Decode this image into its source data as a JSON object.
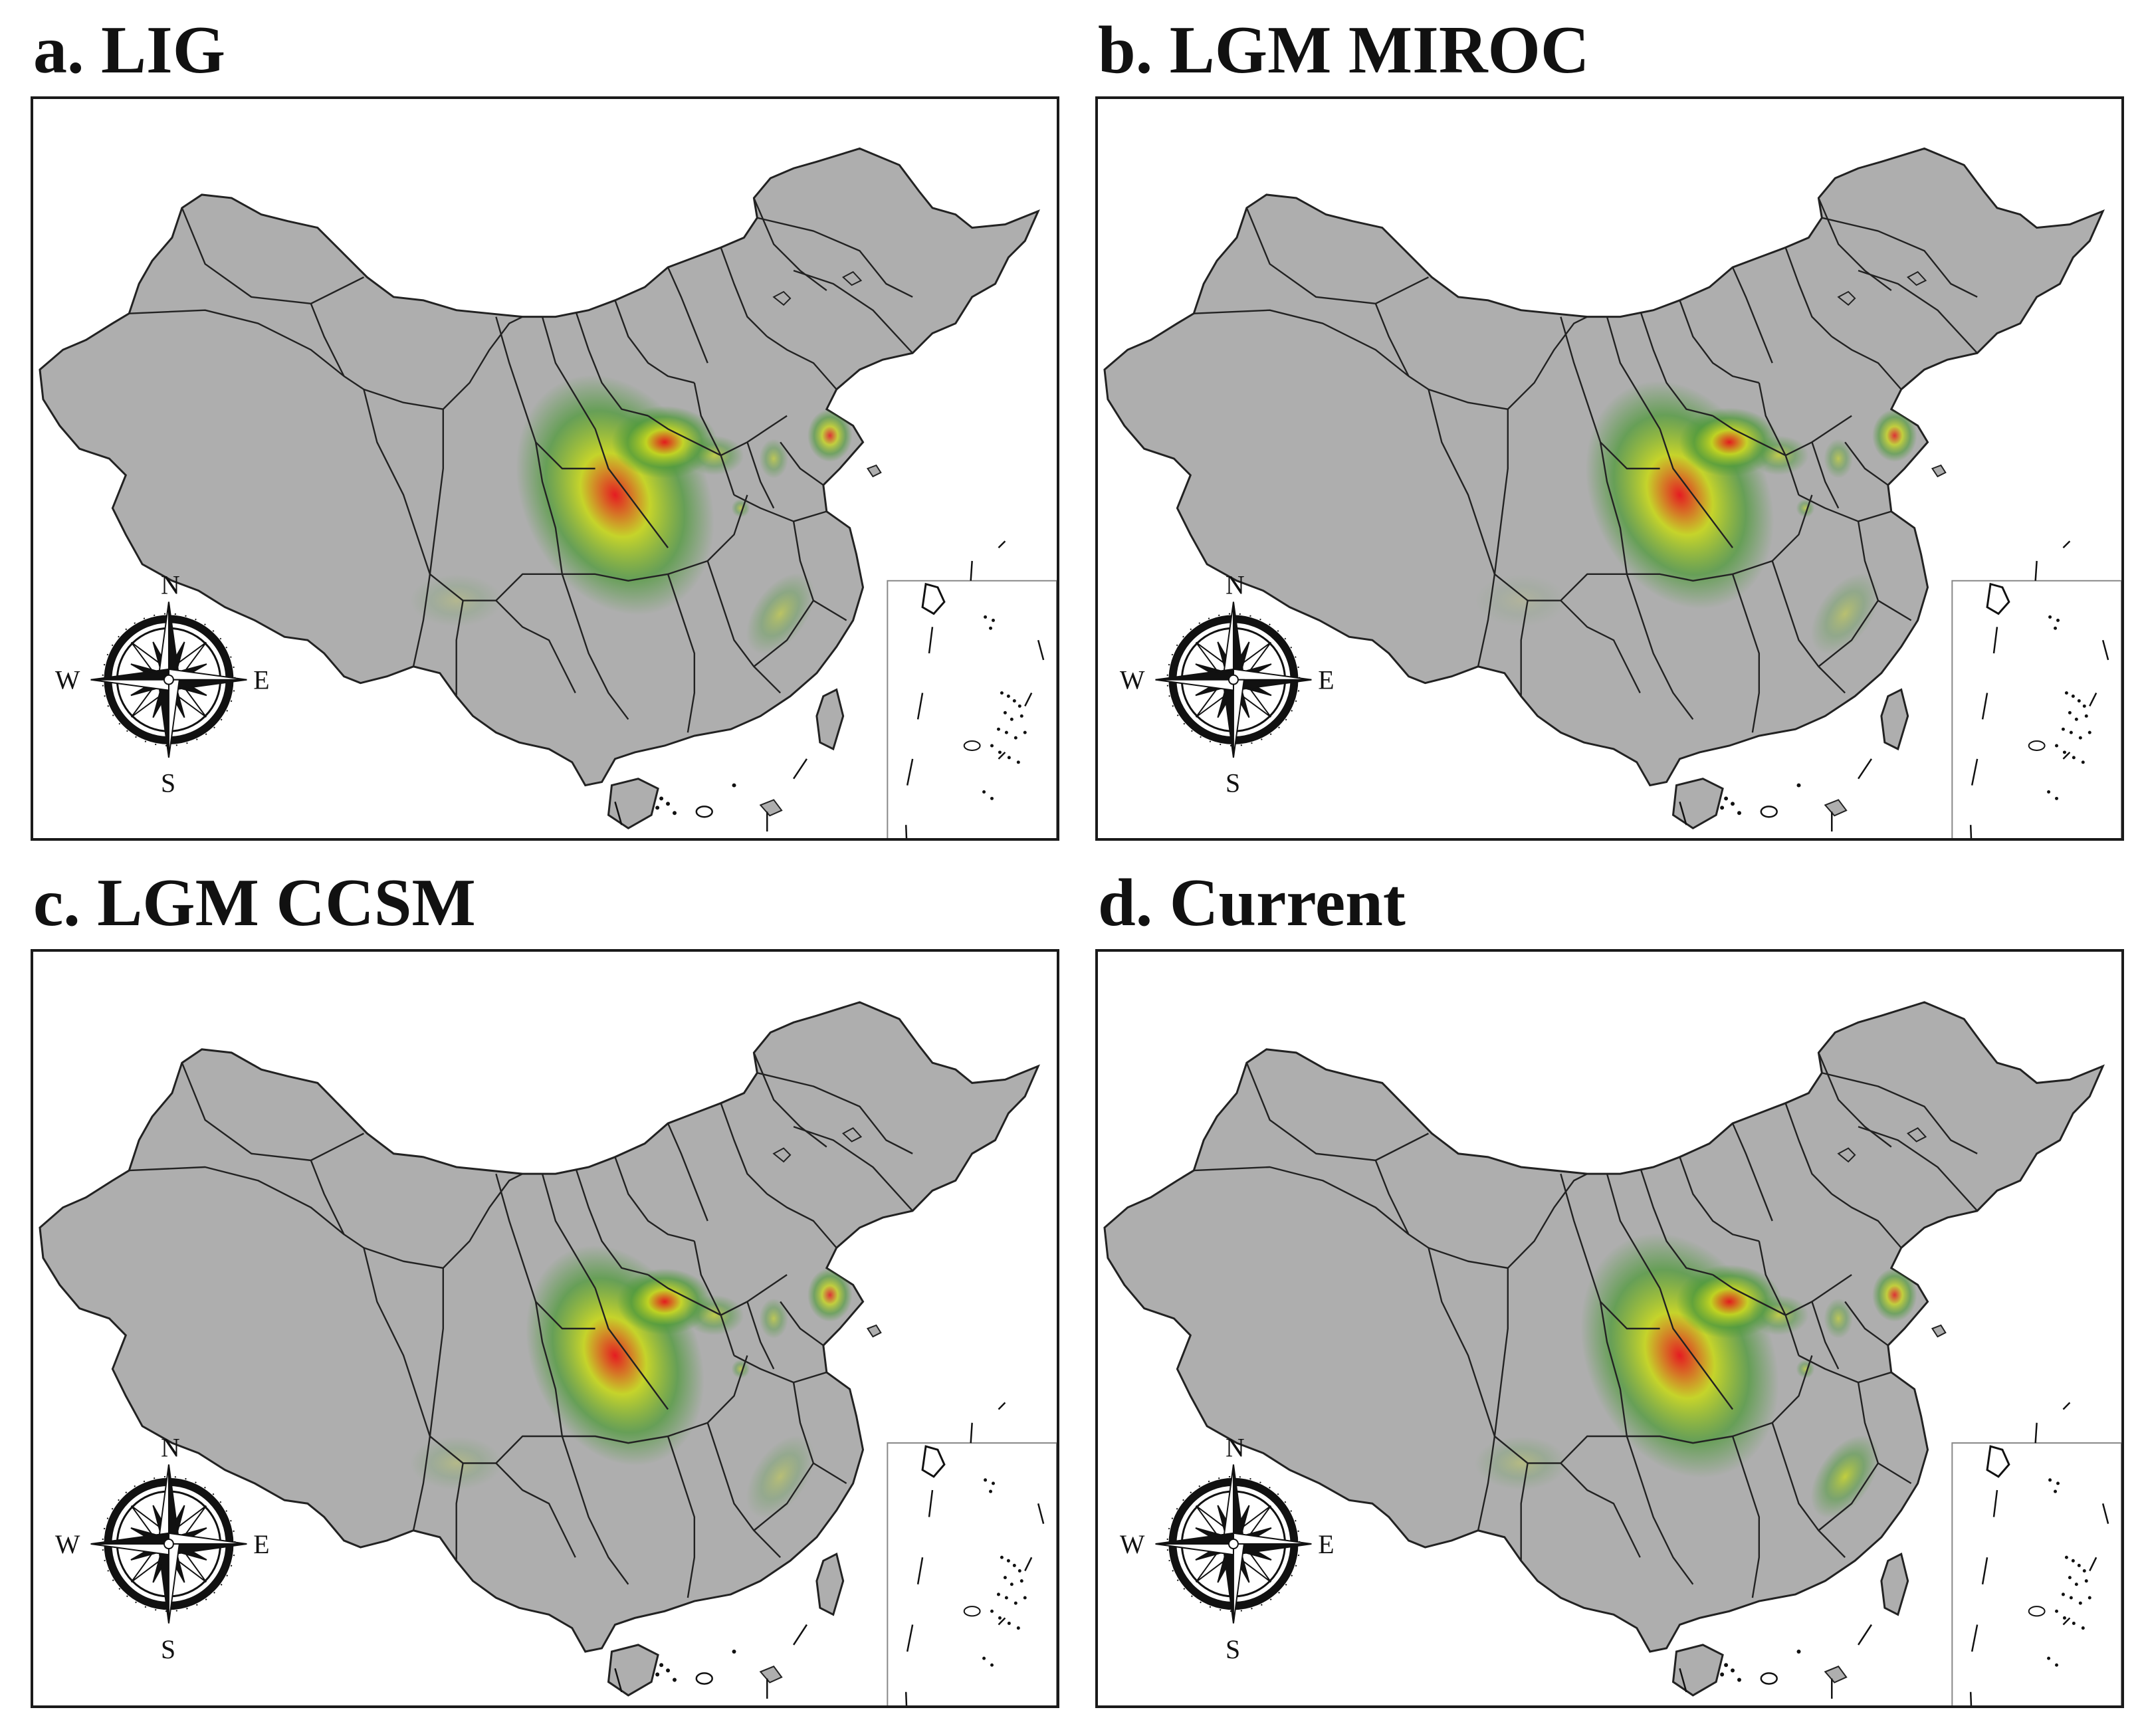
{
  "panels": [
    {
      "id": "a",
      "title": "a. LIG",
      "hotspot_scale": 1.0,
      "east_coast_glow": 0.6,
      "southwest_glow": 0.25
    },
    {
      "id": "b",
      "title": "b. LGM MIROC",
      "hotspot_scale": 0.95,
      "east_coast_glow": 0.5,
      "southwest_glow": 0.15
    },
    {
      "id": "c",
      "title": "c. LGM CCSM",
      "hotspot_scale": 0.9,
      "east_coast_glow": 0.45,
      "southwest_glow": 0.3
    },
    {
      "id": "d",
      "title": "d. Current",
      "hotspot_scale": 1.0,
      "east_coast_glow": 0.9,
      "southwest_glow": 0.35
    }
  ],
  "compass": {
    "north": "N",
    "south": "S",
    "east": "E",
    "west": "W"
  },
  "colors": {
    "land": "#aeaeae",
    "border": "#222222",
    "suitability_low": "#4f9a3a",
    "suitability_mid": "#c8d81c",
    "suitability_high": "#e8141a"
  }
}
